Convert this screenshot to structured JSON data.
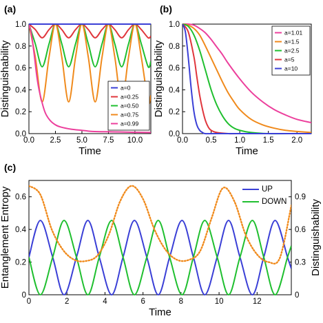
{
  "chart_data": [
    {
      "panel": "(a)",
      "type": "line",
      "xlabel": "Time",
      "ylabel": "Distinguishability",
      "xlim": [
        0,
        11.5
      ],
      "ylim": [
        0,
        1.0
      ],
      "x_ticks": [
        "0.0",
        "2.5",
        "5.0",
        "7.5",
        "10.0"
      ],
      "y_ticks": [
        "0.0",
        "0.2",
        "0.4",
        "0.6",
        "0.8",
        "1.0"
      ],
      "legend_position": "bottom-right",
      "series": [
        {
          "name": "a=0",
          "color": "#3a3fd6",
          "x": [
            0,
            11.5
          ],
          "y": [
            1.0,
            1.0
          ]
        },
        {
          "name": "a=0.25",
          "color": "#e0363c",
          "x": [
            0,
            0.6,
            1.25,
            1.9,
            2.5,
            3.1,
            3.75,
            4.4,
            5.0,
            5.6,
            6.25,
            6.9,
            7.5,
            8.1,
            8.75,
            9.4,
            10.0,
            10.6,
            11.25,
            11.5
          ],
          "y": [
            1.0,
            0.95,
            0.875,
            0.95,
            1.0,
            0.95,
            0.875,
            0.95,
            1.0,
            0.95,
            0.875,
            0.95,
            1.0,
            0.95,
            0.875,
            0.95,
            1.0,
            0.95,
            0.875,
            0.89
          ]
        },
        {
          "name": "a=0.50",
          "color": "#1fbf2f",
          "x": [
            0,
            0.6,
            1.25,
            1.9,
            2.5,
            3.1,
            3.75,
            4.4,
            5.0,
            5.6,
            6.25,
            6.9,
            7.5,
            8.1,
            8.75,
            9.4,
            10.0,
            10.6,
            11.25,
            11.5
          ],
          "y": [
            1.0,
            0.82,
            0.61,
            0.82,
            1.0,
            0.82,
            0.61,
            0.82,
            1.0,
            0.82,
            0.61,
            0.82,
            1.0,
            0.82,
            0.61,
            0.82,
            1.0,
            0.82,
            0.61,
            0.66
          ]
        },
        {
          "name": "a=0.75",
          "color": "#f08a1c",
          "x": [
            0,
            0.6,
            1.25,
            1.9,
            2.5,
            3.1,
            3.75,
            4.4,
            5.0,
            5.6,
            6.25,
            6.9,
            7.5,
            8.1,
            8.75,
            9.4,
            10.0,
            10.6,
            11.25,
            11.5
          ],
          "y": [
            1.0,
            0.7,
            0.29,
            0.7,
            1.0,
            0.7,
            0.29,
            0.7,
            1.0,
            0.7,
            0.29,
            0.7,
            1.0,
            0.7,
            0.29,
            0.7,
            1.0,
            0.7,
            0.29,
            0.35
          ]
        },
        {
          "name": "a=0.99",
          "color": "#ec3f9c",
          "x": [
            0,
            0.25,
            0.5,
            0.75,
            1.0,
            1.5,
            2.0,
            2.5,
            3.0,
            4.0,
            5.0,
            6.0,
            8.0,
            10.0,
            11.5
          ],
          "y": [
            1.0,
            0.9,
            0.72,
            0.52,
            0.38,
            0.2,
            0.12,
            0.08,
            0.06,
            0.04,
            0.03,
            0.02,
            0.016,
            0.012,
            0.01
          ]
        }
      ]
    },
    {
      "panel": "(b)",
      "type": "line",
      "xlabel": "Time",
      "ylabel": "Distinguishability",
      "xlim": [
        0,
        2.25
      ],
      "ylim": [
        0,
        1.0
      ],
      "x_ticks": [
        "0.0",
        "0.5",
        "1.0",
        "1.5",
        "2.0"
      ],
      "y_ticks": [
        "0.0",
        "0.2",
        "0.4",
        "0.6",
        "0.8",
        "1.0"
      ],
      "legend_position": "top-right",
      "series": [
        {
          "name": "a=1.01",
          "color": "#ec3f9c",
          "x": [
            0,
            0.1,
            0.2,
            0.3,
            0.4,
            0.5,
            0.6,
            0.7,
            0.8,
            1.0,
            1.2,
            1.4,
            1.6,
            1.8,
            2.0,
            2.25
          ],
          "y": [
            1.0,
            1.0,
            0.99,
            0.96,
            0.92,
            0.86,
            0.79,
            0.72,
            0.64,
            0.5,
            0.38,
            0.29,
            0.22,
            0.17,
            0.13,
            0.1
          ]
        },
        {
          "name": "a=1.5",
          "color": "#f08a1c",
          "x": [
            0,
            0.1,
            0.2,
            0.3,
            0.4,
            0.5,
            0.6,
            0.7,
            0.8,
            0.9,
            1.0,
            1.2,
            1.4,
            1.6,
            1.8,
            2.0,
            2.25
          ],
          "y": [
            1.0,
            0.99,
            0.96,
            0.9,
            0.8,
            0.69,
            0.58,
            0.47,
            0.37,
            0.29,
            0.22,
            0.13,
            0.08,
            0.05,
            0.03,
            0.02,
            0.01
          ]
        },
        {
          "name": "a=2.5",
          "color": "#1fbf2f",
          "x": [
            0,
            0.1,
            0.2,
            0.3,
            0.4,
            0.5,
            0.6,
            0.7,
            0.8,
            0.9,
            1.0,
            1.2,
            1.5,
            2.0,
            2.25
          ],
          "y": [
            1.0,
            0.98,
            0.9,
            0.76,
            0.58,
            0.4,
            0.26,
            0.16,
            0.09,
            0.05,
            0.03,
            0.01,
            0.0,
            0.0,
            0.0
          ]
        },
        {
          "name": "a=5",
          "color": "#e0363c",
          "x": [
            0,
            0.1,
            0.2,
            0.25,
            0.3,
            0.35,
            0.4,
            0.45,
            0.5,
            0.6,
            0.8,
            1.0,
            2.25
          ],
          "y": [
            1.0,
            0.93,
            0.7,
            0.52,
            0.35,
            0.22,
            0.12,
            0.06,
            0.03,
            0.01,
            0.0,
            0.0,
            0.0
          ]
        },
        {
          "name": "a=10",
          "color": "#3a3fd6",
          "x": [
            0,
            0.05,
            0.1,
            0.15,
            0.2,
            0.25,
            0.3,
            0.35,
            0.4,
            0.6,
            2.25
          ],
          "y": [
            1.0,
            0.93,
            0.7,
            0.42,
            0.2,
            0.08,
            0.03,
            0.01,
            0.0,
            0.0,
            0.0
          ]
        }
      ]
    },
    {
      "panel": "(c)",
      "type": "line",
      "xlabel": "Time",
      "ylabel": "Entanglement Entropy",
      "y2label": "Distinguishability",
      "xlim": [
        0,
        13.8
      ],
      "ylim": [
        0,
        0.7
      ],
      "y2lim": [
        0,
        1.05
      ],
      "x_ticks": [
        "0",
        "2",
        "4",
        "6",
        "8",
        "10",
        "12"
      ],
      "y_ticks": [
        "0",
        "0.2",
        "0.4",
        "0.6"
      ],
      "y2_ticks": [
        "0",
        "0.3",
        "0.6",
        "0.9"
      ],
      "legend_position": "top-right",
      "series": [
        {
          "name": "UP",
          "color": "#3a3fd6",
          "x": [
            0,
            0.6,
            1.25,
            1.85,
            2.5,
            3.1,
            3.7,
            4.35,
            4.95,
            5.55,
            6.2,
            6.8,
            7.4,
            8.05,
            8.65,
            9.25,
            9.9,
            10.5,
            11.1,
            11.75,
            12.35,
            12.95,
            13.6,
            13.8
          ],
          "y": [
            0.23,
            0.455,
            0.23,
            0.0,
            0.23,
            0.455,
            0.23,
            0.0,
            0.23,
            0.455,
            0.23,
            0.0,
            0.23,
            0.455,
            0.23,
            0.0,
            0.23,
            0.455,
            0.23,
            0.0,
            0.23,
            0.455,
            0.23,
            0.16
          ]
        },
        {
          "name": "DOWN",
          "color": "#1fbf2f",
          "x": [
            0,
            0.6,
            1.25,
            1.85,
            2.5,
            3.1,
            3.7,
            4.35,
            4.95,
            5.55,
            6.2,
            6.8,
            7.4,
            8.05,
            8.65,
            9.25,
            9.9,
            10.5,
            11.1,
            11.75,
            12.35,
            12.95,
            13.6,
            13.8
          ],
          "y": [
            0.23,
            0.0,
            0.23,
            0.455,
            0.23,
            0.0,
            0.23,
            0.455,
            0.23,
            0.0,
            0.23,
            0.455,
            0.23,
            0.0,
            0.23,
            0.455,
            0.23,
            0.0,
            0.23,
            0.455,
            0.23,
            0.0,
            0.23,
            0.3
          ]
        },
        {
          "color": "#f08a1c",
          "style": "dotted",
          "axis": "right",
          "x": [
            0,
            0.6,
            1.2,
            1.8,
            2.4,
            3.0,
            3.6,
            4.2,
            4.8,
            5.4,
            6.0,
            6.6,
            7.2,
            7.8,
            8.4,
            9.0,
            9.6,
            10.2,
            10.8,
            11.4,
            12.0,
            12.6,
            13.2,
            13.8
          ],
          "y": [
            1.0,
            0.92,
            0.6,
            0.41,
            0.32,
            0.31,
            0.36,
            0.55,
            0.86,
            1.0,
            0.88,
            0.6,
            0.41,
            0.32,
            0.32,
            0.4,
            0.7,
            0.98,
            0.86,
            0.55,
            0.37,
            0.3,
            0.34,
            0.82
          ]
        }
      ]
    }
  ],
  "labels": {
    "panel_a": "(a)",
    "panel_b": "(b)",
    "panel_c": "(c)"
  }
}
